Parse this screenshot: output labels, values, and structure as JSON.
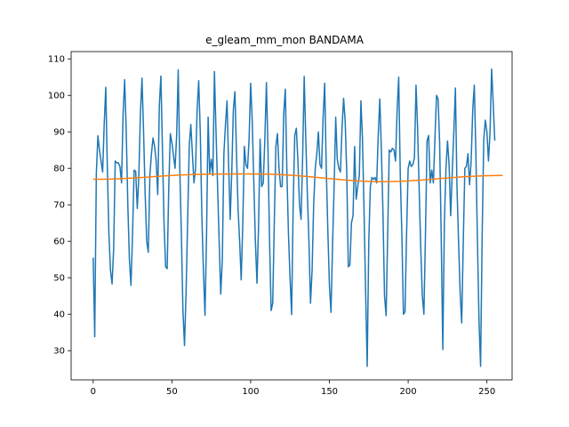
{
  "chart_data": {
    "type": "line",
    "title": "e_gleam_mm_mon BANDAMA",
    "xlabel": "",
    "ylabel": "",
    "xlim": [
      -14,
      266
    ],
    "ylim": [
      22,
      112
    ],
    "xticks": [
      0,
      50,
      100,
      150,
      200,
      250
    ],
    "yticks": [
      30,
      40,
      50,
      60,
      70,
      80,
      90,
      100,
      110
    ],
    "grid": false,
    "colors": {
      "series1": "#1f77b4",
      "series2": "#ff7f0e"
    },
    "series": [
      {
        "values": [
          55.5,
          33.8,
          78.5,
          88.9,
          85.0,
          82.0,
          79.0,
          92.0,
          102.2,
          80.0,
          62.0,
          52.0,
          48.3,
          58.0,
          82.0,
          81.5,
          81.5,
          80.5,
          76.0,
          95.0,
          104.3,
          90.0,
          70.0,
          55.0,
          47.9,
          62.0,
          79.5,
          79.2,
          69.0,
          78.0,
          95.0,
          104.7,
          90.0,
          73.0,
          60.0,
          57.0,
          78.0,
          84.0,
          88.3,
          86.0,
          82.0,
          72.8,
          97.0,
          105.3,
          85.0,
          65.0,
          53.0,
          52.5,
          75.0,
          89.5,
          87.0,
          83.5,
          80.0,
          89.0,
          107.0,
          80.0,
          62.0,
          41.0,
          31.4,
          46.0,
          66.0,
          86.0,
          92.0,
          84.0,
          76.0,
          80.0,
          96.0,
          104.0,
          90.0,
          67.0,
          52.0,
          39.7,
          62.0,
          94.0,
          78.5,
          82.5,
          78.0,
          106.5,
          90.0,
          75.0,
          60.0,
          45.5,
          55.0,
          84.0,
          92.0,
          98.5,
          81.0,
          66.0,
          79.0,
          96.0,
          101.0,
          84.0,
          69.0,
          60.0,
          49.4,
          65.0,
          86.0,
          81.0,
          80.0,
          88.0,
          103.3,
          93.0,
          76.0,
          60.0,
          48.5,
          64.0,
          88.0,
          75.0,
          76.0,
          88.0,
          103.5,
          85.0,
          60.0,
          41.0,
          43.0,
          65.0,
          86.0,
          89.5,
          80.0,
          75.0,
          75.0,
          95.0,
          101.7,
          79.0,
          62.0,
          50.0,
          39.9,
          70.0,
          89.0,
          91.0,
          82.0,
          70.0,
          66.0,
          83.0,
          105.2,
          88.0,
          73.0,
          60.0,
          43.0,
          52.0,
          70.0,
          80.0,
          84.0,
          90.0,
          81.0,
          80.0,
          94.0,
          103.3,
          80.0,
          63.0,
          48.0,
          40.5,
          59.0,
          75.0,
          94.0,
          82.5,
          80.0,
          79.0,
          91.0,
          99.2,
          93.0,
          79.0,
          53.0,
          53.5,
          65.0,
          67.0,
          86.0,
          71.5,
          75.0,
          78.0,
          98.5,
          88.0,
          68.0,
          46.0,
          25.7,
          60.0,
          75.0,
          77.5,
          77.0,
          77.5,
          76.0,
          89.0,
          99.0,
          85.0,
          68.0,
          45.0,
          39.6,
          62.0,
          85.0,
          84.5,
          85.5,
          85.0,
          82.0,
          96.0,
          105.0,
          78.0,
          62.0,
          40.0,
          40.6,
          62.0,
          80.0,
          82.0,
          80.5,
          81.0,
          83.0,
          102.8,
          91.0,
          74.0,
          58.0,
          45.0,
          40.0,
          62.0,
          87.5,
          89.0,
          76.0,
          79.5,
          76.0,
          88.0,
          100.0,
          99.0,
          87.0,
          61.0,
          30.3,
          65.0,
          80.0,
          87.5,
          81.0,
          67.0,
          79.0,
          90.0,
          102.0,
          75.0,
          60.0,
          46.0,
          37.6,
          60.0,
          80.0,
          80.5,
          84.0,
          75.5,
          82.0,
          96.0,
          102.8,
          84.0,
          60.0,
          38.0,
          25.7,
          62.0,
          88.0,
          93.2,
          90.0,
          82.0,
          90.0,
          107.2,
          98.0,
          87.6
        ]
      },
      {
        "values": [
          77.0,
          77.0,
          77.0,
          77.0,
          77.0,
          77.0,
          77.01,
          77.01,
          77.02,
          77.03,
          77.04,
          77.05,
          77.06,
          77.08,
          77.09,
          77.11,
          77.13,
          77.15,
          77.17,
          77.19,
          77.21,
          77.23,
          77.26,
          77.28,
          77.31,
          77.33,
          77.36,
          77.39,
          77.42,
          77.45,
          77.47,
          77.5,
          77.53,
          77.56,
          77.59,
          77.62,
          77.65,
          77.68,
          77.71,
          77.74,
          77.77,
          77.8,
          77.83,
          77.86,
          77.89,
          77.91,
          77.94,
          77.97,
          77.99,
          78.02,
          78.04,
          78.07,
          78.09,
          78.11,
          78.13,
          78.15,
          78.17,
          78.19,
          78.21,
          78.23,
          78.24,
          78.26,
          78.27,
          78.29,
          78.3,
          78.31,
          78.32,
          78.33,
          78.34,
          78.35,
          78.36,
          78.37,
          78.38,
          78.39,
          78.39,
          78.4,
          78.41,
          78.41,
          78.42,
          78.42,
          78.42,
          78.43,
          78.43,
          78.43,
          78.44,
          78.44,
          78.44,
          78.44,
          78.44,
          78.45,
          78.45,
          78.45,
          78.45,
          78.45,
          78.45,
          78.45,
          78.45,
          78.45,
          78.45,
          78.45,
          78.45,
          78.44,
          78.44,
          78.44,
          78.44,
          78.43,
          78.43,
          78.42,
          78.41,
          78.41,
          78.4,
          78.39,
          78.38,
          78.37,
          78.35,
          78.34,
          78.32,
          78.3,
          78.29,
          78.27,
          78.24,
          78.22,
          78.2,
          78.17,
          78.14,
          78.12,
          78.09,
          78.06,
          78.03,
          77.99,
          77.96,
          77.93,
          77.89,
          77.86,
          77.82,
          77.78,
          77.75,
          77.71,
          77.67,
          77.63,
          77.59,
          77.55,
          77.51,
          77.47,
          77.43,
          77.39,
          77.35,
          77.31,
          77.27,
          77.23,
          77.19,
          77.15,
          77.11,
          77.07,
          77.03,
          76.99,
          76.95,
          76.91,
          76.87,
          76.84,
          76.8,
          76.77,
          76.73,
          76.7,
          76.67,
          76.64,
          76.61,
          76.58,
          76.55,
          76.53,
          76.5,
          76.48,
          76.46,
          76.44,
          76.42,
          76.41,
          76.39,
          76.38,
          76.37,
          76.36,
          76.35,
          76.35,
          76.34,
          76.34,
          76.34,
          76.34,
          76.35,
          76.35,
          76.36,
          76.36,
          76.37,
          76.38,
          76.4,
          76.41,
          76.43,
          76.44,
          76.46,
          76.48,
          76.5,
          76.52,
          76.55,
          76.57,
          76.6,
          76.63,
          76.65,
          76.68,
          76.71,
          76.74,
          76.77,
          76.8,
          76.84,
          76.87,
          76.9,
          76.94,
          76.97,
          77.0,
          77.04,
          77.07,
          77.11,
          77.14,
          77.18,
          77.21,
          77.25,
          77.28,
          77.32,
          77.35,
          77.38,
          77.42,
          77.45,
          77.48,
          77.51,
          77.55,
          77.58,
          77.61,
          77.64,
          77.66,
          77.69,
          77.72,
          77.74,
          77.77,
          77.79,
          77.81,
          77.83,
          77.85,
          77.87,
          77.89,
          77.91,
          77.93,
          77.94,
          77.96,
          77.97,
          77.98,
          77.99,
          78.0,
          78.01,
          78.02,
          78.02,
          78.03,
          78.03,
          78.03,
          78.04
        ]
      }
    ]
  }
}
